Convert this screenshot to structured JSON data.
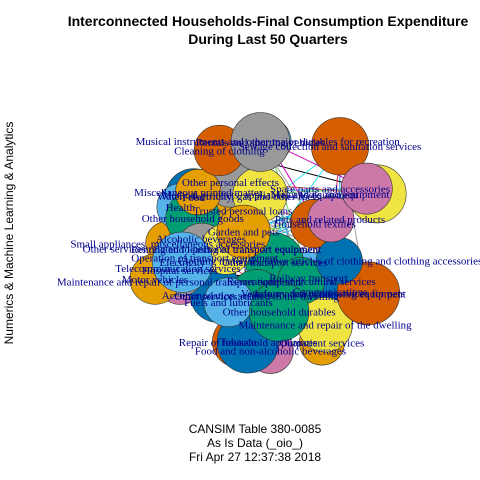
{
  "chart_data": {
    "type": "network",
    "title_lines": [
      "Interconnected Households-Final Consumption Expenditure",
      "During Last 50 Quarters"
    ],
    "ylabel": "Numerics & Machine Learning & Analytics",
    "caption_lines": [
      "CANSIM Table 380-0085",
      "As Is Data (_oio_)",
      "Fri Apr 27 12:37:38 2018"
    ],
    "palette": [
      "#000000",
      "#df536b",
      "#61d04f",
      "#2297e6",
      "#28e2e5",
      "#cd0bbc",
      "#f5c710",
      "#9e9e9e"
    ],
    "node_fill_colors": [
      "#e69f00",
      "#56b4e9",
      "#009e73",
      "#f0e442",
      "#0072b2",
      "#d55e00",
      "#cc79a7",
      "#999999"
    ],
    "nodes": [
      "Small appliances, miscellaneous accessories",
      "Railway transport",
      "Telecommunication services",
      "Communications",
      "Food",
      "Tobacco",
      "Trusted personal loans",
      "Alcoholic beverages",
      "Water, electricity, gas and other fuels",
      "Health",
      "Other transport services",
      "Major tools and equipment",
      "Veterinary and other services for pets",
      "Household textiles",
      "Maintenance and repair of personal transport equipment",
      "Other personal effects",
      "Outpatient services",
      "Operation of transport equipment",
      "Other household goods",
      "Maintenance and repair of the dwelling",
      "Accommodation services",
      "Information processing equipment",
      "Food and non-alcoholic beverages",
      "Other services related to personal transport equipment",
      "Miscellaneous printed matter",
      "Musical instruments and other major durables for recreation",
      "Recreational and cultural services",
      "Renting and leasing of transport equipment",
      "Clothing materials, other articles of clothing and clothing accessories",
      "Cleaning of clothing",
      "Pets and related products",
      "Hospital services",
      "Motor vehicles",
      "Electricity",
      "Other services related to the dwelling",
      "Medical products, appliances and equipment",
      "Repair of household appliances",
      "Sewage collection and sanitation services",
      "Spare parts and accessories",
      "Rentals and sporting vehicles",
      "Garden and pets",
      "Fuels and lubricants",
      "Other household durables"
    ]
  }
}
